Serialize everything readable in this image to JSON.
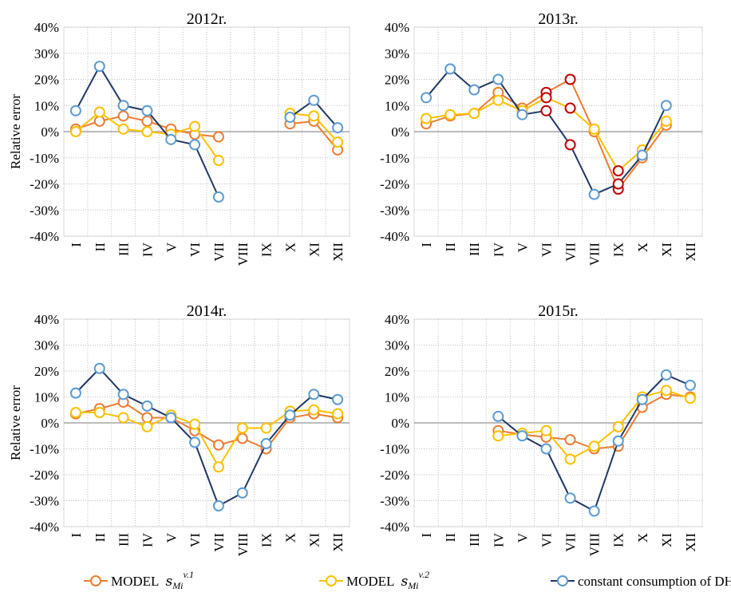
{
  "legend": {
    "series": [
      {
        "name": "MODEL",
        "symbol": "s",
        "sub": "Mi",
        "sup": "v.1",
        "color": "#ed7d31",
        "marker_edge": "#ed7d31"
      },
      {
        "name": "MODEL",
        "symbol": "s",
        "sub": "Mi",
        "sup": "v.2",
        "color": "#ffc000",
        "marker_edge": "#ffc000"
      },
      {
        "name": "constant consumption of DHW",
        "color": "#203864",
        "marker_edge": "#5b9bd5"
      }
    ]
  },
  "chart_data": [
    {
      "type": "line",
      "title": "2012r.",
      "ylabel": "Relative error",
      "categories": [
        "I",
        "II",
        "III",
        "IV",
        "V",
        "VI",
        "VII",
        "VIII",
        "IX",
        "X",
        "XI",
        "XII"
      ],
      "series": [
        {
          "values": [
            1,
            4,
            6,
            4,
            1,
            -1,
            -2,
            null,
            null,
            3,
            4,
            -7
          ]
        },
        {
          "values": [
            0,
            7.5,
            1,
            0,
            -1,
            2,
            -11,
            null,
            null,
            7,
            6,
            -4
          ]
        },
        {
          "values": [
            8,
            25,
            10,
            8,
            -3,
            -5,
            -25,
            null,
            null,
            5.5,
            12,
            1.5
          ]
        }
      ],
      "ylim": [
        -40,
        40
      ],
      "yticks": [
        {
          "value": -40,
          "label": "-40%"
        },
        {
          "value": -30,
          "label": "-30%"
        },
        {
          "value": -20,
          "label": "-20%"
        },
        {
          "value": -10,
          "label": "-10%"
        },
        {
          "value": 0,
          "label": "0%"
        },
        {
          "value": 10,
          "label": "10%"
        },
        {
          "value": 20,
          "label": "20%"
        },
        {
          "value": 30,
          "label": "30%"
        },
        {
          "value": 40,
          "label": "40%"
        }
      ],
      "grid": true
    },
    {
      "type": "line",
      "title": "2013r.",
      "categories": [
        "I",
        "II",
        "III",
        "IV",
        "V",
        "VI",
        "VII",
        "VIII",
        "IX",
        "X",
        "XI",
        "XII"
      ],
      "series": [
        {
          "values": [
            3,
            6,
            7,
            15,
            9,
            15,
            20,
            0,
            -22,
            -10,
            2.5,
            null
          ]
        },
        {
          "values": [
            5,
            6.5,
            7,
            12,
            8,
            13,
            9,
            1,
            -15,
            -7,
            4,
            null
          ]
        },
        {
          "values": [
            13,
            24,
            16,
            20,
            6.5,
            8,
            -5,
            -24,
            -20,
            -9,
            10,
            null
          ]
        }
      ],
      "highlight": {
        "color": "#c00000",
        "categories": [
          "VI",
          "VII",
          "IX"
        ]
      },
      "ylim": [
        -40,
        40
      ],
      "yticks": [
        {
          "value": -40,
          "label": "-40%"
        },
        {
          "value": -30,
          "label": "-30%"
        },
        {
          "value": -20,
          "label": "-20%"
        },
        {
          "value": -10,
          "label": "-10%"
        },
        {
          "value": 0,
          "label": "0%"
        },
        {
          "value": 10,
          "label": "10%"
        },
        {
          "value": 20,
          "label": "20%"
        },
        {
          "value": 30,
          "label": "30%"
        },
        {
          "value": 40,
          "label": "40%"
        }
      ],
      "grid": true
    },
    {
      "type": "line",
      "title": "2014r.",
      "ylabel": "Relative error",
      "categories": [
        "I",
        "II",
        "III",
        "IV",
        "V",
        "VI",
        "VII",
        "VIII",
        "IX",
        "X",
        "XI",
        "XII"
      ],
      "series": [
        {
          "values": [
            3.5,
            5.5,
            8,
            2,
            2,
            -3,
            -8.5,
            -6,
            -10,
            2,
            3.5,
            2
          ]
        },
        {
          "values": [
            4,
            4,
            2,
            -1.5,
            3,
            -0.5,
            -17,
            -2,
            -2,
            4.5,
            5,
            3.5
          ]
        },
        {
          "values": [
            11.5,
            21,
            11,
            6.5,
            2,
            -7.5,
            -32,
            -27,
            -8,
            3,
            11,
            9
          ]
        }
      ],
      "ylim": [
        -40,
        40
      ],
      "yticks": [
        {
          "value": -40,
          "label": "-40%"
        },
        {
          "value": -30,
          "label": "-30%"
        },
        {
          "value": -20,
          "label": "-20%"
        },
        {
          "value": -10,
          "label": "-10%"
        },
        {
          "value": 0,
          "label": "0%"
        },
        {
          "value": 10,
          "label": "10%"
        },
        {
          "value": 20,
          "label": "20%"
        },
        {
          "value": 30,
          "label": "30%"
        },
        {
          "value": 40,
          "label": "40%"
        }
      ],
      "grid": true
    },
    {
      "type": "line",
      "title": "2015r.",
      "categories": [
        "I",
        "II",
        "III",
        "IV",
        "V",
        "VI",
        "VII",
        "VIII",
        "IX",
        "X",
        "XI",
        "XII"
      ],
      "series": [
        {
          "values": [
            null,
            null,
            null,
            -3,
            -4.5,
            -5.5,
            -6.5,
            -10,
            -9,
            6,
            11,
            10
          ]
        },
        {
          "values": [
            null,
            null,
            null,
            -5,
            -4,
            -3,
            -14,
            -9,
            -1.5,
            10,
            12.5,
            9.5
          ]
        },
        {
          "values": [
            null,
            null,
            null,
            2.5,
            -5,
            -10,
            -29,
            -34,
            -7,
            9,
            18.5,
            14.5
          ]
        }
      ],
      "ylim": [
        -40,
        40
      ],
      "yticks": [
        {
          "value": -40,
          "label": "-40%"
        },
        {
          "value": -30,
          "label": "-30%"
        },
        {
          "value": -20,
          "label": "-20%"
        },
        {
          "value": -10,
          "label": "-10%"
        },
        {
          "value": 0,
          "label": "0%"
        },
        {
          "value": 10,
          "label": "10%"
        },
        {
          "value": 20,
          "label": "20%"
        },
        {
          "value": 30,
          "label": "30%"
        },
        {
          "value": 40,
          "label": "40%"
        }
      ],
      "grid": true
    }
  ]
}
